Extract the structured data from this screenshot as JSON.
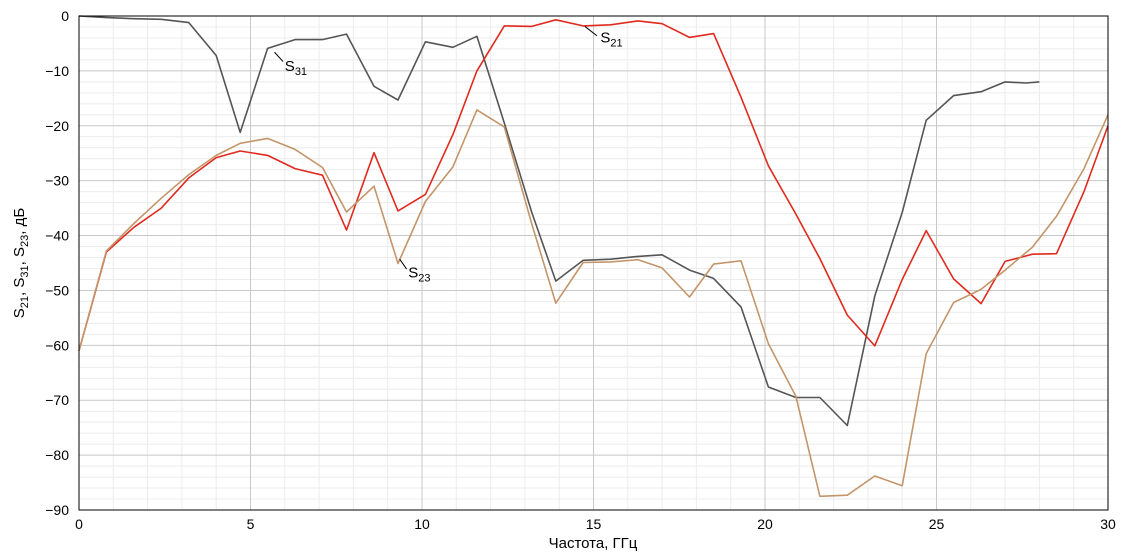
{
  "chart_data": {
    "type": "line",
    "xlabel": "Частота, ГГц",
    "ylabel": "S21, S31, S23, дБ",
    "ylabel_parts": [
      {
        "base": "S",
        "sub": "21",
        "sep": ", "
      },
      {
        "base": "S",
        "sub": "31",
        "sep": ", "
      },
      {
        "base": "S",
        "sub": "23",
        "sep": ", дБ"
      }
    ],
    "xlim": [
      0,
      30
    ],
    "ylim": [
      -90,
      0
    ],
    "x_ticks": [
      0,
      5,
      10,
      15,
      20,
      25,
      30
    ],
    "y_ticks": [
      0,
      -10,
      -20,
      -30,
      -40,
      -50,
      -60,
      -70,
      -80,
      -90
    ],
    "x_tick_labels": [
      "0",
      "5",
      "10",
      "15",
      "20",
      "25",
      "30"
    ],
    "y_tick_labels": [
      "0",
      "−10",
      "−20",
      "−30",
      "−40",
      "−50",
      "−60",
      "−70",
      "−80",
      "−90"
    ],
    "grid": true,
    "legend": "none",
    "series": [
      {
        "color": "#555555",
        "x": [
          0,
          0.8,
          1.6,
          2.4,
          3.2,
          4.0,
          4.7,
          5.5,
          6.3,
          7.1,
          7.8,
          8.6,
          9.3,
          10.1,
          10.9,
          11.6,
          12.4,
          13.2,
          13.9,
          14.7,
          15.5,
          16.3,
          17.0,
          17.8,
          18.5,
          19.3,
          20.1,
          20.9,
          21.6,
          22.4,
          23.2,
          24.0,
          24.7,
          25.5,
          26.3,
          27.0,
          27.6,
          28.0
        ],
        "y": [
          0,
          -0.3,
          -0.5,
          -0.6,
          -1.2,
          -7.2,
          -21.2,
          -5.9,
          -4.3,
          -4.3,
          -3.3,
          -12.8,
          -15.3,
          -4.7,
          -5.7,
          -3.7,
          -19.5,
          -35.8,
          -48.3,
          -44.5,
          -44.3,
          -43.8,
          -43.5,
          -46.3,
          -47.8,
          -53.0,
          -67.6,
          -69.5,
          -69.5,
          -74.6,
          -51.0,
          -35.8,
          -19.0,
          -14.5,
          -13.8,
          -12.0,
          -12.2,
          -12.0
        ]
      },
      {
        "color": "#e02a1e",
        "x": [
          0,
          0.8,
          1.6,
          2.4,
          3.2,
          4.0,
          4.7,
          5.5,
          6.3,
          7.1,
          7.8,
          8.6,
          9.3,
          10.1,
          10.9,
          11.6,
          12.4,
          13.2,
          13.9,
          14.7,
          15.5,
          16.3,
          17.0,
          17.8,
          18.5,
          19.3,
          20.1,
          20.9,
          21.6,
          22.4,
          23.2,
          24.0,
          24.7,
          25.5,
          26.3,
          27.0,
          27.8,
          28.5,
          29.3,
          30.0
        ],
        "y": [
          -61,
          -43,
          -38.5,
          -35,
          -29.5,
          -25.8,
          -24.6,
          -25.4,
          -27.8,
          -29.0,
          -39.0,
          -24.9,
          -35.5,
          -32.5,
          -21.6,
          -10.0,
          -1.8,
          -1.9,
          -0.7,
          -1.8,
          -1.6,
          -0.9,
          -1.4,
          -3.9,
          -3.2,
          -14.8,
          -27.3,
          -36.1,
          -44.2,
          -54.5,
          -60.1,
          -48.0,
          -39.1,
          -47.9,
          -52.4,
          -44.7,
          -43.4,
          -43.3,
          -32.0,
          -20.0
        ]
      },
      {
        "color": "#c4956a",
        "x": [
          0,
          0.8,
          1.6,
          2.4,
          3.2,
          4.0,
          4.7,
          5.5,
          6.3,
          7.1,
          7.8,
          8.6,
          9.3,
          10.1,
          10.9,
          11.6,
          12.4,
          13.2,
          13.9,
          14.7,
          15.5,
          16.3,
          17.0,
          17.8,
          18.5,
          19.3,
          20.1,
          20.9,
          21.6,
          22.4,
          23.2,
          24.0,
          24.7,
          25.5,
          26.3,
          27.0,
          27.8,
          28.5,
          29.3,
          30.0
        ],
        "y": [
          -61,
          -42.8,
          -37.8,
          -33.2,
          -28.9,
          -25.4,
          -23.2,
          -22.3,
          -24.3,
          -27.6,
          -35.7,
          -31.0,
          -45.1,
          -33.8,
          -27.5,
          -17.1,
          -20.2,
          -37.9,
          -52.3,
          -44.9,
          -44.8,
          -44.4,
          -45.9,
          -51.2,
          -45.2,
          -44.6,
          -59.7,
          -69.3,
          -87.5,
          -87.3,
          -83.8,
          -85.6,
          -61.5,
          -52.2,
          -49.8,
          -46.3,
          -42.1,
          -36.5,
          -27.8,
          -18.0
        ]
      }
    ],
    "annotations": [
      {
        "base": "S",
        "sub": "31",
        "x": 6.0,
        "y": -10.0,
        "leader_from": [
          5.7,
          -6.6
        ],
        "leader_to": [
          5.95,
          -8.3
        ]
      },
      {
        "base": "S",
        "sub": "21",
        "x": 15.2,
        "y": -4.8,
        "leader_from": [
          14.75,
          -1.9
        ],
        "leader_to": [
          15.1,
          -3.6
        ]
      },
      {
        "base": "S",
        "sub": "23",
        "x": 9.6,
        "y": -47.6,
        "leader_from": [
          9.35,
          -44.3
        ],
        "leader_to": [
          9.55,
          -46.1
        ]
      }
    ]
  }
}
